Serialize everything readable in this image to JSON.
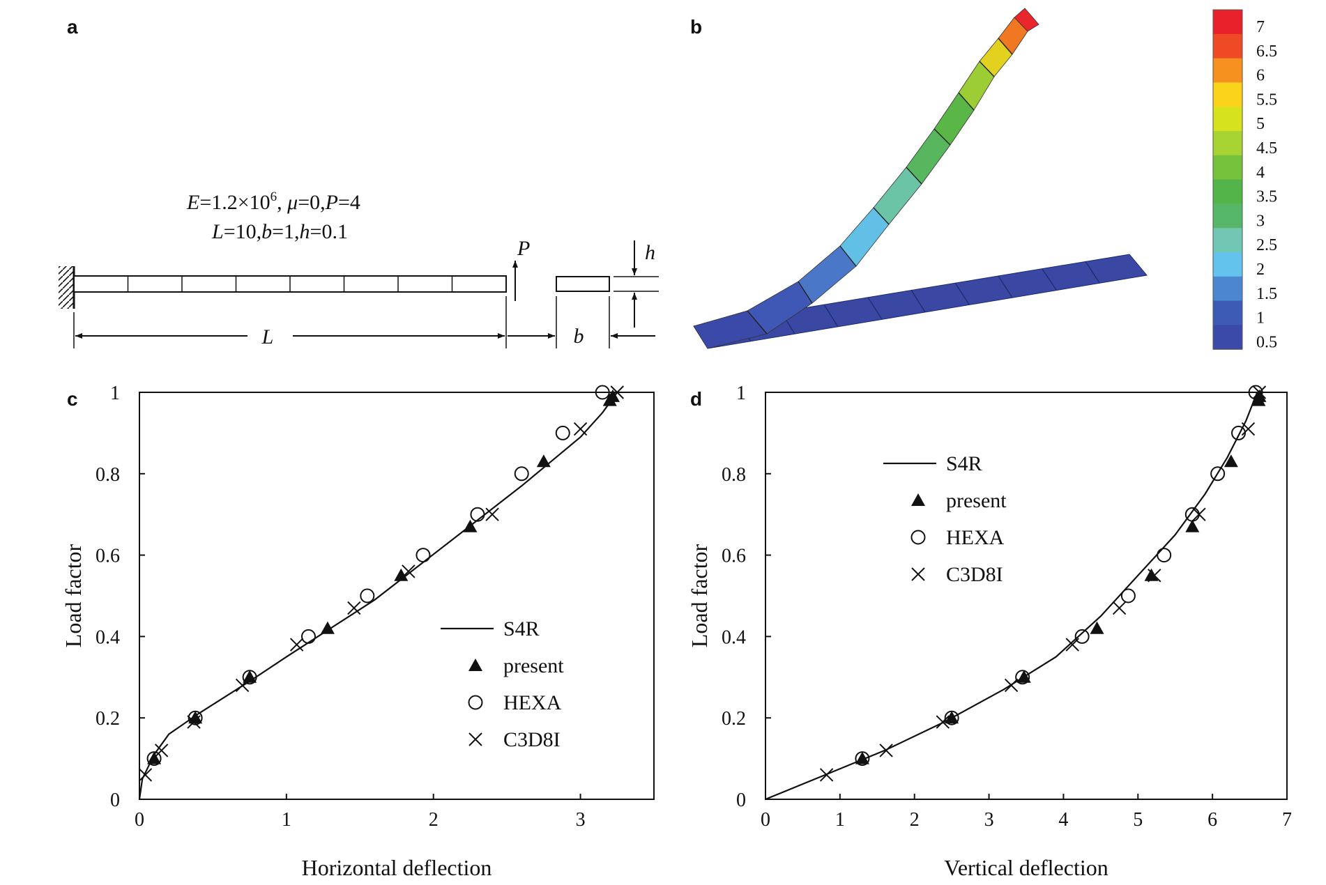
{
  "panels": {
    "a": {
      "label": "a",
      "line1": {
        "E": "E",
        "eq1": "=1.2×10",
        "exp": "6",
        "sep": ", ",
        "mu": "μ",
        "eq2": "=0,",
        "P": "P",
        "eq3": "=4"
      },
      "line2": {
        "L": "L",
        "eq1": "=10,",
        "b": "b",
        "eq2": "=1,",
        "h": "h",
        "eq3": "=0.1"
      },
      "load_label": "P",
      "length_label": "L",
      "width_label": "b",
      "thickness_label": "h"
    },
    "b": {
      "label": "b",
      "colorbar_ticks": [
        "7",
        "6.5",
        "6",
        "5.5",
        "5",
        "4.5",
        "4",
        "3.5",
        "3",
        "2.5",
        "2",
        "1.5",
        "1",
        "0.5"
      ],
      "colorbar_colors": [
        "#e8212b",
        "#ee4a26",
        "#f6901e",
        "#fbd31a",
        "#d6e21e",
        "#a8d433",
        "#77c23d",
        "#53b44a",
        "#57b768",
        "#71c6b4",
        "#64c3ec",
        "#4d86d0",
        "#3d5bb5",
        "#3b4aa8"
      ]
    },
    "c": {
      "label": "c"
    },
    "d": {
      "label": "d"
    }
  },
  "chart_data": [
    {
      "id": "c",
      "type": "scatter",
      "xlabel": "Horizontal deflection",
      "ylabel": "Load factor",
      "xlim": [
        0,
        3.5
      ],
      "ylim": [
        0,
        1
      ],
      "xticks": [
        "0",
        "1",
        "2",
        "3"
      ],
      "yticks": [
        "0",
        "0.2",
        "0.4",
        "0.6",
        "0.8",
        "1"
      ],
      "legend_position": "lower-right",
      "series": [
        {
          "name": "S4R",
          "marker": "line",
          "x": [
            0,
            0.02,
            0.1,
            0.2,
            0.4,
            0.75,
            1.0,
            1.3,
            1.6,
            1.85,
            2.1,
            2.35,
            2.6,
            2.8,
            3.0,
            3.15,
            3.25
          ],
          "y": [
            0,
            0.05,
            0.11,
            0.16,
            0.21,
            0.29,
            0.35,
            0.42,
            0.49,
            0.56,
            0.63,
            0.7,
            0.77,
            0.83,
            0.89,
            0.95,
            1.0
          ]
        },
        {
          "name": "present",
          "marker": "triangle",
          "x": [
            0.1,
            0.38,
            0.75,
            1.28,
            1.78,
            2.25,
            2.75,
            3.2,
            3.22
          ],
          "y": [
            0.1,
            0.2,
            0.3,
            0.42,
            0.55,
            0.67,
            0.83,
            0.98,
            0.99
          ]
        },
        {
          "name": "HEXA",
          "marker": "circle",
          "x": [
            0.1,
            0.38,
            0.75,
            1.15,
            1.55,
            1.93,
            2.3,
            2.6,
            2.88,
            3.15
          ],
          "y": [
            0.1,
            0.2,
            0.3,
            0.4,
            0.5,
            0.6,
            0.7,
            0.8,
            0.9,
            1.0
          ]
        },
        {
          "name": "C3D8I",
          "marker": "cross",
          "x": [
            0.04,
            0.15,
            0.37,
            0.7,
            1.07,
            1.46,
            1.83,
            2.4,
            3.0,
            3.25
          ],
          "y": [
            0.06,
            0.12,
            0.19,
            0.28,
            0.38,
            0.47,
            0.56,
            0.7,
            0.91,
            1.0
          ]
        }
      ]
    },
    {
      "id": "d",
      "type": "scatter",
      "xlabel": "Vertical deflection",
      "ylabel": "Load factor",
      "xlim": [
        0,
        7
      ],
      "ylim": [
        0,
        1
      ],
      "xticks": [
        "0",
        "1",
        "2",
        "3",
        "4",
        "5",
        "6",
        "7"
      ],
      "yticks": [
        "0",
        "0.2",
        "0.4",
        "0.6",
        "0.8",
        "1"
      ],
      "legend_position": "top-left",
      "series": [
        {
          "name": "S4R",
          "marker": "line",
          "x": [
            0,
            0.8,
            1.6,
            2.4,
            3.2,
            3.9,
            4.5,
            5.0,
            5.5,
            5.9,
            6.2,
            6.45,
            6.6
          ],
          "y": [
            0,
            0.06,
            0.12,
            0.19,
            0.27,
            0.35,
            0.45,
            0.55,
            0.65,
            0.75,
            0.84,
            0.93,
            1.0
          ]
        },
        {
          "name": "present",
          "marker": "triangle",
          "x": [
            1.3,
            2.5,
            3.47,
            4.45,
            5.18,
            5.73,
            6.25,
            6.62,
            6.63
          ],
          "y": [
            0.1,
            0.2,
            0.3,
            0.42,
            0.55,
            0.67,
            0.83,
            0.98,
            0.99
          ]
        },
        {
          "name": "HEXA",
          "marker": "circle",
          "x": [
            1.3,
            2.5,
            3.45,
            4.25,
            4.87,
            5.35,
            5.73,
            6.07,
            6.35,
            6.58
          ],
          "y": [
            0.1,
            0.2,
            0.3,
            0.4,
            0.5,
            0.6,
            0.7,
            0.8,
            0.9,
            1.0
          ]
        },
        {
          "name": "C3D8I",
          "marker": "cross",
          "x": [
            0.82,
            1.62,
            2.38,
            3.3,
            4.12,
            4.75,
            5.22,
            5.82,
            6.48,
            6.63
          ],
          "y": [
            0.06,
            0.12,
            0.19,
            0.28,
            0.38,
            0.47,
            0.55,
            0.7,
            0.91,
            1.0
          ]
        }
      ]
    }
  ]
}
